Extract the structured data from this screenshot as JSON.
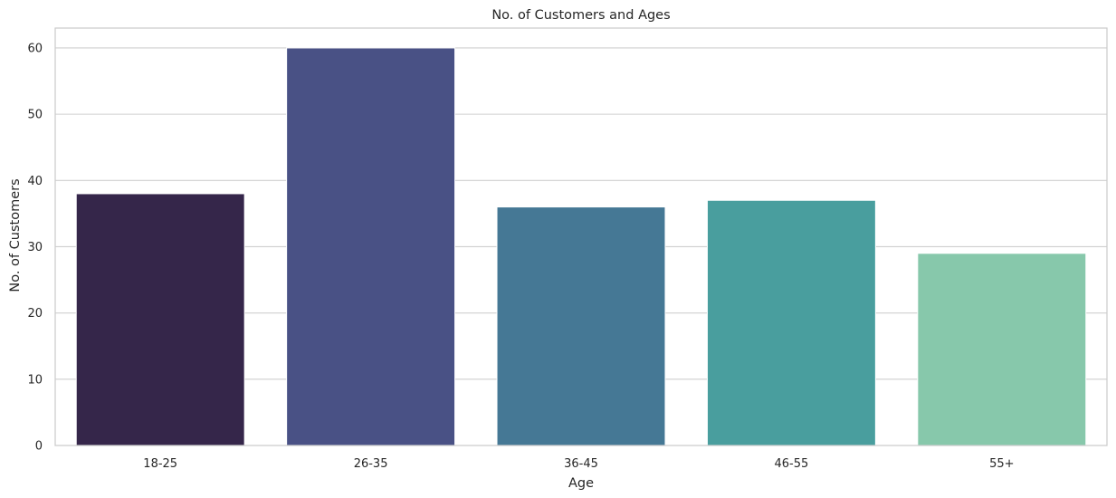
{
  "chart_data": {
    "type": "bar",
    "title": "No. of Customers and Ages",
    "xlabel": "Age",
    "ylabel": "No. of Customers",
    "categories": [
      "18-25",
      "26-35",
      "36-45",
      "46-55",
      "55+"
    ],
    "values": [
      38,
      60,
      36,
      37,
      29
    ],
    "ylim": [
      0,
      63
    ],
    "yticks": [
      0,
      10,
      20,
      30,
      40,
      50,
      60
    ],
    "grid": "horizontal",
    "colors": [
      "#35264a",
      "#495185",
      "#457895",
      "#499e9e",
      "#87c8ab"
    ]
  }
}
